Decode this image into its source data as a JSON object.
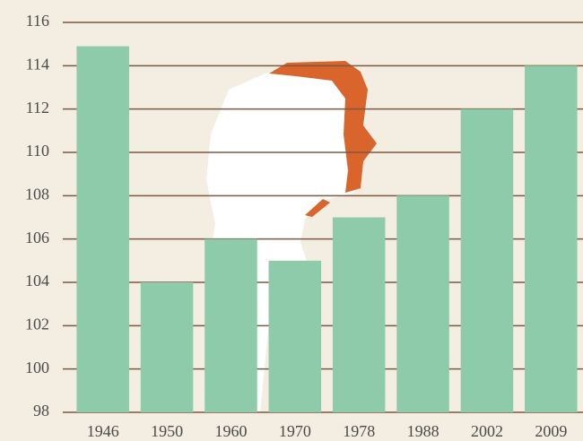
{
  "chart_data": {
    "type": "bar",
    "categories": [
      "1946",
      "1950",
      "1960",
      "1970",
      "1978",
      "1988",
      "2002",
      "2009"
    ],
    "values": [
      114.9,
      104,
      106,
      105,
      107,
      108,
      112,
      114
    ],
    "color": "#8ecbab",
    "ylim": [
      98,
      116
    ],
    "yticks": [
      98,
      100,
      102,
      104,
      106,
      108,
      110,
      112,
      114,
      116
    ],
    "grid": true
  }
}
